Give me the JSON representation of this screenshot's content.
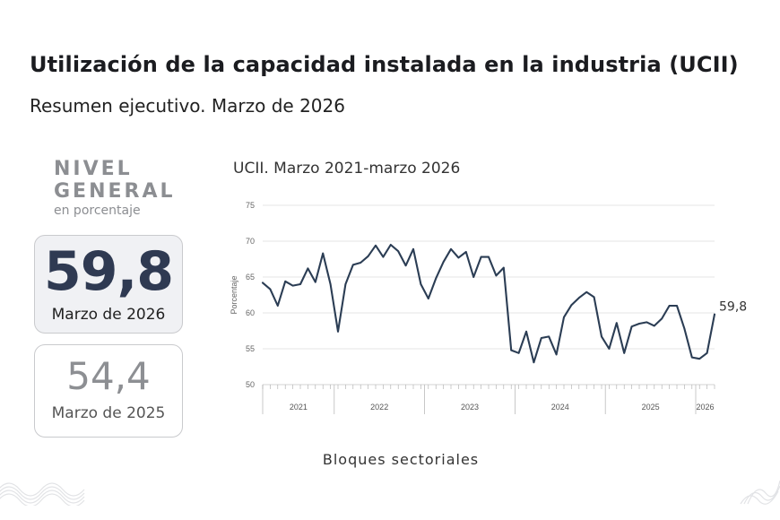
{
  "header": {
    "title": "Utilización de la capacidad instalada en la industria (UCII)",
    "subtitle": "Resumen ejecutivo. Marzo de 2026"
  },
  "level": {
    "line1": "NIVEL",
    "line2": "GENERAL",
    "unit": "en porcentaje"
  },
  "cards": {
    "current": {
      "value": "59,8",
      "label": "Marzo de 2026"
    },
    "previous": {
      "value": "54,4",
      "label": "Marzo de 2025"
    }
  },
  "footer": {
    "label": "Bloques sectoriales"
  },
  "colors": {
    "line": "#2b3d54",
    "grid": "#dcdcdc",
    "accent_card": "#f0f1f4"
  },
  "chart_data": {
    "type": "line",
    "title": "UCII. Marzo 2021-marzo 2026",
    "ylabel": "Porcentaje",
    "xlabel": "",
    "ylim": [
      50,
      75
    ],
    "yticks": [
      "75",
      "70",
      "65",
      "60",
      "55",
      "50"
    ],
    "year_labels": [
      "2021",
      "2022",
      "2023",
      "2024",
      "2025",
      "2026"
    ],
    "end_label": "59,8",
    "grid": "horizontal",
    "x_start": "2021-03",
    "x_end": "2026-03",
    "series": [
      {
        "values": [
          64.2,
          63.3,
          61.0,
          64.4,
          63.8,
          64.0,
          66.2,
          64.3,
          68.3,
          64.0,
          57.4,
          64.0,
          66.7,
          67.0,
          67.9,
          69.4,
          67.8,
          69.5,
          68.6,
          66.6,
          68.9,
          64.0,
          62.0,
          64.8,
          67.1,
          68.9,
          67.7,
          68.5,
          65.0,
          67.8,
          67.8,
          65.2,
          66.3,
          54.8,
          54.4,
          57.4,
          53.1,
          56.5,
          56.7,
          54.2,
          59.4,
          61.1,
          62.1,
          62.9,
          62.2,
          56.7,
          55.0,
          58.6,
          54.4,
          58.1,
          58.5,
          58.7,
          58.2,
          59.2,
          61.0,
          61.0,
          57.8,
          53.8,
          53.6,
          54.4,
          59.8
        ]
      }
    ]
  }
}
